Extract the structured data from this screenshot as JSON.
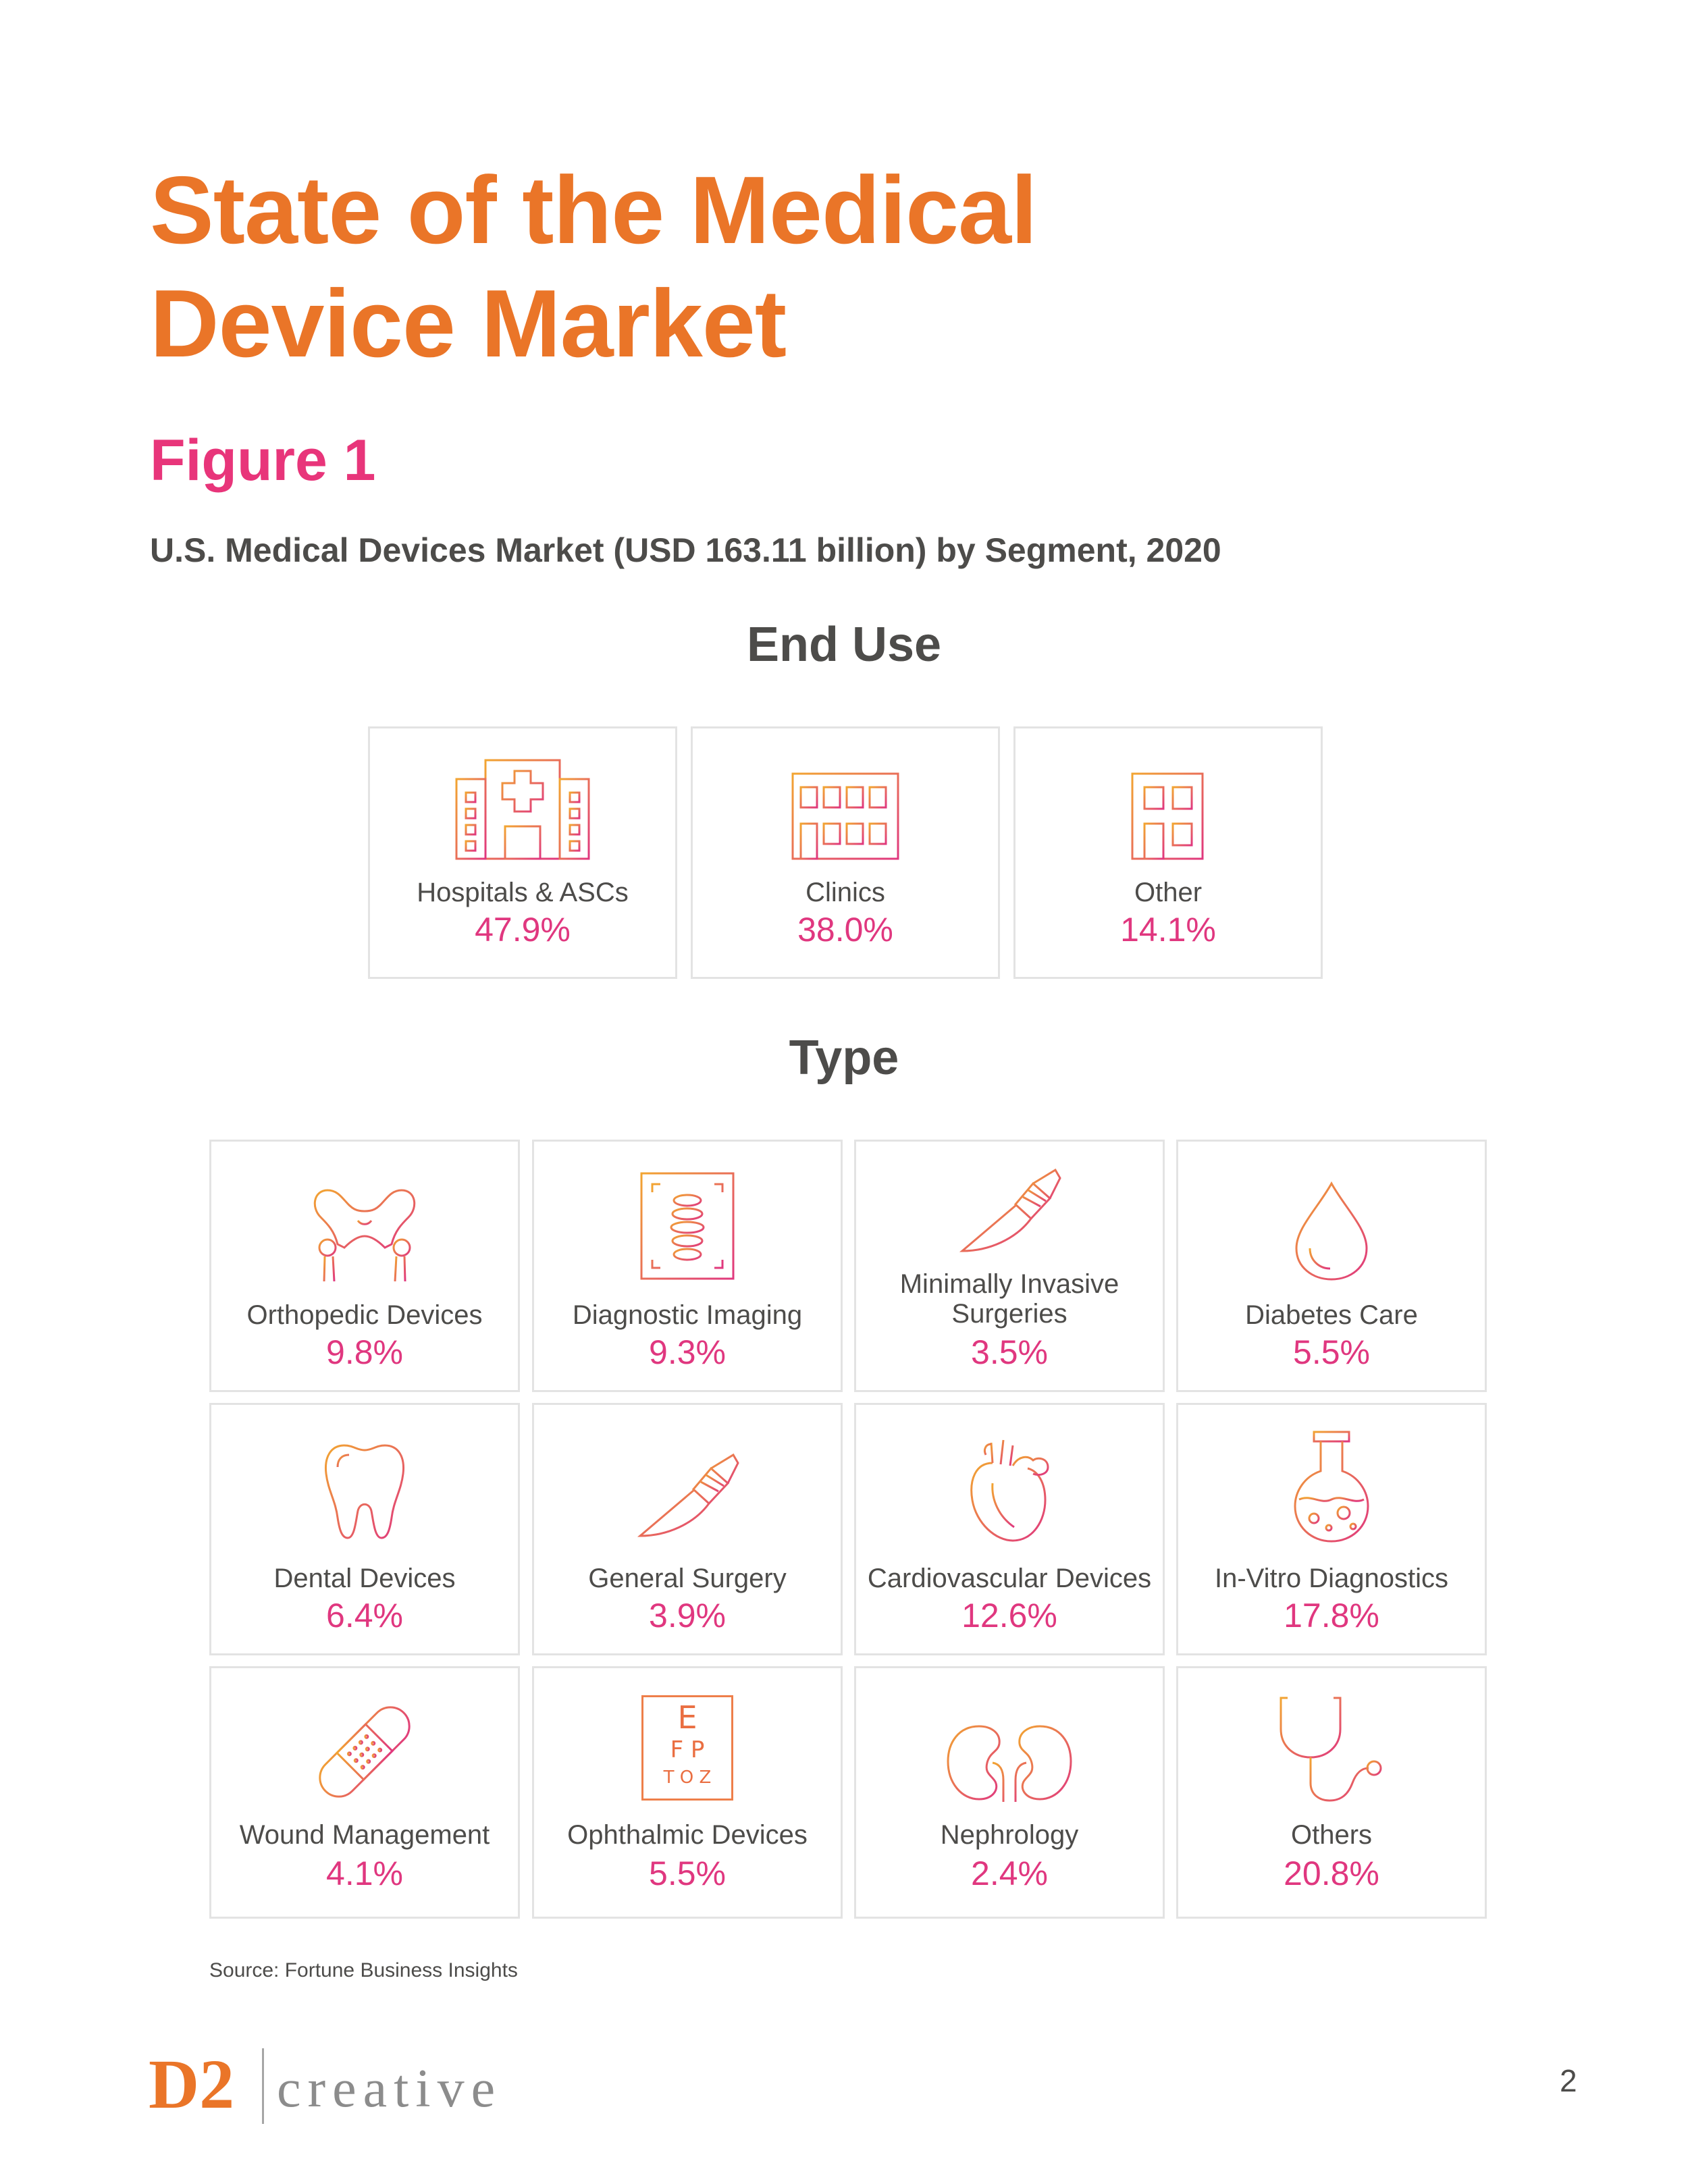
{
  "header": {
    "title_line1": "State of the Medical",
    "title_line2": "Device Market",
    "figure_label": "Figure 1",
    "subtitle": "U.S. Medical Devices Market (USD 163.11 billion) by Segment, 2020"
  },
  "end_use": {
    "title": "End Use",
    "items": [
      {
        "label": "Hospitals & ASCs",
        "value": "47.9%",
        "icon": "hospital-icon"
      },
      {
        "label": "Clinics",
        "value": "38.0%",
        "icon": "clinic-building-icon"
      },
      {
        "label": "Other",
        "value": "14.1%",
        "icon": "small-building-icon"
      }
    ]
  },
  "type": {
    "title": "Type",
    "items": [
      {
        "label": "Orthopedic Devices",
        "value": "9.8%",
        "icon": "pelvis-bone-icon"
      },
      {
        "label": "Diagnostic Imaging",
        "value": "9.3%",
        "icon": "spine-xray-icon"
      },
      {
        "label": "Minimally Invasive Surgeries",
        "label_line1": "Minimally Invasive",
        "label_line2": "Surgeries",
        "value": "3.5%",
        "icon": "scalpel-icon"
      },
      {
        "label": "Diabetes Care",
        "value": "5.5%",
        "icon": "blood-drop-icon"
      },
      {
        "label": "Dental Devices",
        "value": "6.4%",
        "icon": "tooth-icon"
      },
      {
        "label": "General Surgery",
        "value": "3.9%",
        "icon": "scalpel-icon"
      },
      {
        "label": "Cardiovascular Devices",
        "value": "12.6%",
        "icon": "heart-icon"
      },
      {
        "label": "In-Vitro Diagnostics",
        "value": "17.8%",
        "icon": "flask-icon"
      },
      {
        "label": "Wound Management",
        "value": "4.1%",
        "icon": "bandage-icon"
      },
      {
        "label": "Ophthalmic Devices",
        "value": "5.5%",
        "icon": "eye-chart-icon"
      },
      {
        "label": "Nephrology",
        "value": "2.4%",
        "icon": "kidneys-icon"
      },
      {
        "label": "Others",
        "value": "20.8%",
        "icon": "stethoscope-icon"
      }
    ]
  },
  "eye_chart": {
    "row1": "E",
    "row2": "F P",
    "row3": "T O Z"
  },
  "source": "Source: Fortune Business Insights",
  "footer": {
    "logo_d2": "D2",
    "logo_creative": "creative",
    "page_number": "2"
  },
  "colors": {
    "title_orange": "#ea7528",
    "figure_pink": "#e8357a",
    "value_pink": "#e0377f",
    "icon_gradient_start": "#f0a030",
    "icon_gradient_end": "#e0377f"
  }
}
